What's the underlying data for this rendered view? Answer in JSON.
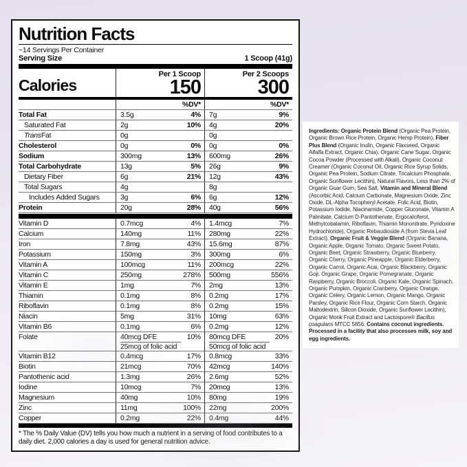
{
  "colors": {
    "background_top": "#e5e2ee",
    "background_bottom": "#f6f5f8",
    "panel_background": "#ffffff",
    "panel_border": "#141414"
  },
  "panel": {
    "title": "Nutrition Facts",
    "servings_per_container": "~14 Servings Per Container",
    "serving_size_label": "Serving Size",
    "serving_size_value": "1 Scoop (41g)",
    "col1_header": "Per 1 Scoop",
    "col2_header": "Per 2 Scoops",
    "calories_label": "Calories",
    "calories_col1": "150",
    "calories_col2": "300",
    "dv_header": "%DV*",
    "macro_rows": [
      {
        "name": "Total Fat",
        "bold": true,
        "a1": "3.5g",
        "p1": "4%",
        "a2": "7g",
        "p2": "9%"
      },
      {
        "name": "Saturated Fat",
        "indent": 1,
        "a1": "2g",
        "p1": "10%",
        "a2": "4g",
        "p2": "20%"
      },
      {
        "name_i": "Trans",
        "name": " Fat",
        "indent": 1,
        "a1": "0g",
        "p1": "",
        "a2": "0g",
        "p2": ""
      },
      {
        "name": "Cholesterol",
        "bold": true,
        "a1": "0g",
        "p1": "0%",
        "a2": "0g",
        "p2": "0%"
      },
      {
        "name": "Sodium",
        "bold": true,
        "a1": "300mg",
        "p1": "13%",
        "a2": "600mg",
        "p2": "26%"
      },
      {
        "name": "Total Carbohydrate",
        "bold": true,
        "a1": "13g",
        "p1": "5%",
        "a2": "26g",
        "p2": "9%"
      },
      {
        "name": "Dietary Fiber",
        "indent": 1,
        "a1": "6g",
        "p1": "21%",
        "a2": "12g",
        "p2": "43%"
      },
      {
        "name": "Total Sugars",
        "indent": 1,
        "a1": "4g",
        "p1": "",
        "a2": "8g",
        "p2": ""
      },
      {
        "name": "Includes Added Sugars",
        "indent": 2,
        "a1": "3g",
        "p1": "6%",
        "a2": "6g",
        "p2": "12%"
      },
      {
        "name": "Protein",
        "bold": true,
        "a1": "20g",
        "p1": "28%",
        "a2": "40g",
        "p2": "56%"
      }
    ],
    "micro_rows": [
      {
        "name": "Vitamin D",
        "a1": "0.7mcg",
        "p1": "4%",
        "a2": "1.4mcg",
        "p2": "7%"
      },
      {
        "name": "Calcium",
        "a1": "140mg",
        "p1": "11%",
        "a2": "280mg",
        "p2": "22%"
      },
      {
        "name": "Iron",
        "a1": "7.8mg",
        "p1": "43%",
        "a2": "15.6mg",
        "p2": "87%"
      },
      {
        "name": "Potassium",
        "a1": "150mg",
        "p1": "3%",
        "a2": "300mg",
        "p2": "6%"
      },
      {
        "name": "Vitamin A",
        "a1": "100mcg",
        "p1": "11%",
        "a2": "200mcg",
        "p2": "22%"
      },
      {
        "name": "Vitamin C",
        "a1": "250mg",
        "p1": "278%",
        "a2": "500mg",
        "p2": "556%"
      },
      {
        "name": "Vitamin E",
        "a1": "1mg",
        "p1": "7%",
        "a2": "2mg",
        "p2": "13%"
      },
      {
        "name": "Thiamin",
        "a1": "0.1mg",
        "p1": "8%",
        "a2": "0.2mg",
        "p2": "17%"
      },
      {
        "name": "Riboflavin",
        "a1": "0.1mg",
        "p1": "8%",
        "a2": "0.2mg",
        "p2": "15%"
      },
      {
        "name": "Niacin",
        "a1": "5mg",
        "p1": "31%",
        "a2": "10mg",
        "p2": "63%"
      },
      {
        "name": "Vitamin B6",
        "a1": "0.1mg",
        "p1": "6%",
        "a2": "0.2mg",
        "p2": "12%"
      },
      {
        "name": "Folate",
        "a1": "40mcg DFE",
        "p1": "10%",
        "a2": "80mcg DFE",
        "p2": "20%",
        "sub1": "25mcg of folic acid",
        "sub2": "50mcg of folic acid"
      },
      {
        "name": "Vitamin B12",
        "a1": "0.4mcg",
        "p1": "17%",
        "a2": "0.8mcg",
        "p2": "33%"
      },
      {
        "name": "Biotin",
        "a1": "21mcg",
        "p1": "70%",
        "a2": "42mcg",
        "p2": "140%"
      },
      {
        "name": "Pantothenic acid",
        "a1": "1.3mg",
        "p1": "26%",
        "a2": "2.6mg",
        "p2": "52%"
      },
      {
        "name": "Iodine",
        "a1": "10mcg",
        "p1": "7%",
        "a2": "20mcg",
        "p2": "13%"
      },
      {
        "name": "Magnesium",
        "a1": "40mg",
        "p1": "10%",
        "a2": "80mg",
        "p2": "19%"
      },
      {
        "name": "Zinc",
        "a1": "11mg",
        "p1": "100%",
        "a2": "22mg",
        "p2": "200%"
      },
      {
        "name": "Copper",
        "a1": "0.2mg",
        "p1": "22%",
        "a2": "0.4mg",
        "p2": "44%"
      }
    ],
    "footnote": "* The % Daily Value (DV) tells you how much a nutrient in a serving of food contributes to a daily diet. 2,000 calories a day is used for general nutrition advice."
  },
  "ingredients": {
    "segments": [
      {
        "text": "Ingredients: Organic Protein Blend ",
        "bold": true
      },
      {
        "text": "(Organic Pea Protein, Organic Brown Rice Protein, Organic Hemp Protein), "
      },
      {
        "text": "Fiber Plus Blend ",
        "bold": true
      },
      {
        "text": "(Organic Inulin, Organic Flaxseed, Organic Alfalfa Extract, Organic Chia), Organic Cane Sugar, Organic Cocoa Powder (Processed with Alkali), Organic Coconut Creamer (Organic Coconut Oil, Organic Rice Syrup Solids, Organic Pea Protein, Sodium Citrate, Tricalcium Phosphate, Organic Sunflower Lecithin), Natural Flavors, Less than 2% of Organic Guar Gum, Sea Salt, "
      },
      {
        "text": "Vitamin and Mineral Blend ",
        "bold": true
      },
      {
        "text": "(Ascorbic Acid, Calcium Carbonate, Magnesium Oxide, Zinc Oxide, DL-Alpha Tocopheryl Acetate, Folic Acid, Biotin, Potassium Iodide, Niacinamide, Copper Gluconate, Vitamin A Palmitate, Calcium D-Pantothenate, Ergocalciferol, Methylcobalamin, Riboflavin, Thiamin Mononitrate, Pyridoxine Hydrochloride), Organic Rebaudioside A (from Stevia Leaf Extract), "
      },
      {
        "text": "Organic Fruit & Veggie Blend ",
        "bold": true
      },
      {
        "text": "(Organic Banana, Organic Apple, Organic Tomato, Organic Sweet Potato, Organic Beet, Organic Strawberry, Organic Blueberry, Organic Cherry, Organic Pineapple, Organic Elderberry, Organic Carrot, Organic Acai, Organic Blackberry, Organic Goji, Organic Grape, Organic Pomegranate, Organic Raspberry, Organic Broccoli, Organic Kale, Organic Spinach, Organic Pumpkin, Organic Cranberry, Organic Orange, Organic Celery, Organic Lemon, Organic Mango, Organic Parsley, Organic Rice Flour, Organic Corn Starch, Organic Maltodextrin, Silicon Dioxide, Organic Sunflower Lecithin), Organic Monk Fruit Extract and Lactospore® "
      },
      {
        "text": "Bacillus coagulans",
        "italic": true
      },
      {
        "text": " MTCC 5856. "
      },
      {
        "text": "Contains coconut ingredients. Processed in a facility that also processes milk, soy and egg ingredients.",
        "bold": true
      }
    ]
  }
}
